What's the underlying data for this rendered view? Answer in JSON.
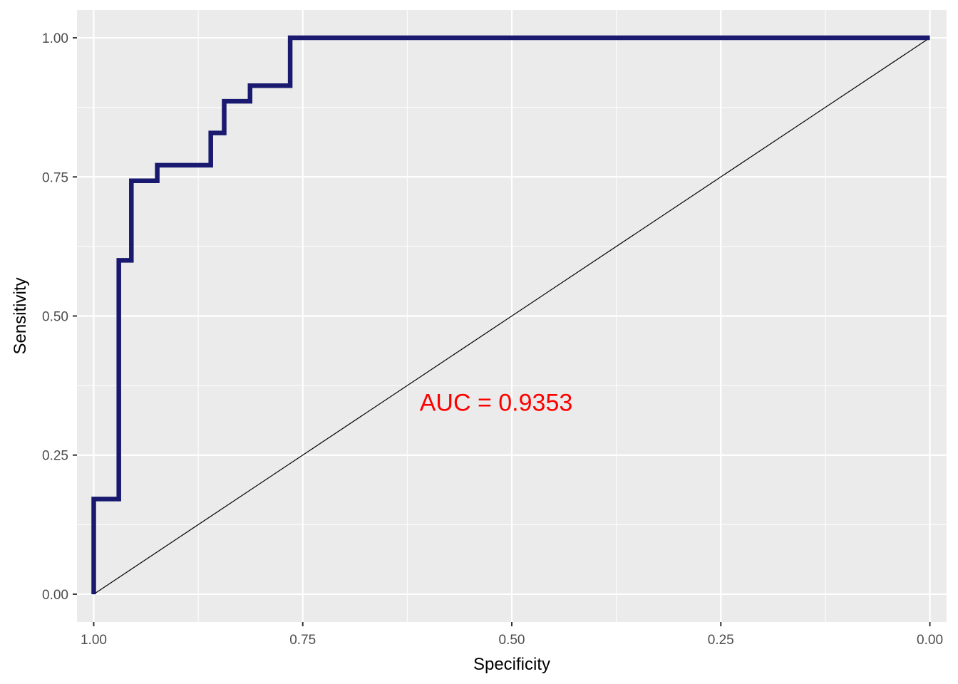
{
  "chart_data": {
    "type": "line",
    "xlabel": "Specificity",
    "ylabel": "Sensitivity",
    "x_reversed": true,
    "xlim": [
      1.02,
      -0.02
    ],
    "ylim": [
      -0.05,
      1.05
    ],
    "x_ticks": [
      {
        "value": 1.0,
        "label": "1.00"
      },
      {
        "value": 0.75,
        "label": "0.75"
      },
      {
        "value": 0.5,
        "label": "0.50"
      },
      {
        "value": 0.25,
        "label": "0.25"
      },
      {
        "value": 0.0,
        "label": "0.00"
      }
    ],
    "y_ticks": [
      {
        "value": 0.0,
        "label": "0.00"
      },
      {
        "value": 0.25,
        "label": "0.25"
      },
      {
        "value": 0.5,
        "label": "0.50"
      },
      {
        "value": 0.75,
        "label": "0.75"
      },
      {
        "value": 1.0,
        "label": "1.00"
      }
    ],
    "x_minor": [
      0.875,
      0.625,
      0.375,
      0.125
    ],
    "y_minor": [
      0.125,
      0.375,
      0.625,
      0.875
    ],
    "grid": true,
    "panel_background": "#EBEBEB",
    "grid_color": "#FFFFFF",
    "series": [
      {
        "color": "#191970",
        "points": [
          [
            1.0,
            0.0
          ],
          [
            1.0,
            0.171
          ],
          [
            0.97,
            0.171
          ],
          [
            0.97,
            0.6
          ],
          [
            0.955,
            0.6
          ],
          [
            0.955,
            0.743
          ],
          [
            0.924,
            0.743
          ],
          [
            0.924,
            0.771
          ],
          [
            0.86,
            0.771
          ],
          [
            0.86,
            0.829
          ],
          [
            0.844,
            0.829
          ],
          [
            0.844,
            0.886
          ],
          [
            0.813,
            0.886
          ],
          [
            0.813,
            0.914
          ],
          [
            0.765,
            0.914
          ],
          [
            0.765,
            1.0
          ],
          [
            0.0,
            1.0
          ]
        ]
      }
    ],
    "reference_line": {
      "color": "#000000",
      "from": [
        1.0,
        0.0
      ],
      "to": [
        0.0,
        1.0
      ]
    },
    "annotation": {
      "text": "AUC = 0.9353",
      "x": 0.5,
      "y": 0.345,
      "color": "#FF0000"
    }
  }
}
